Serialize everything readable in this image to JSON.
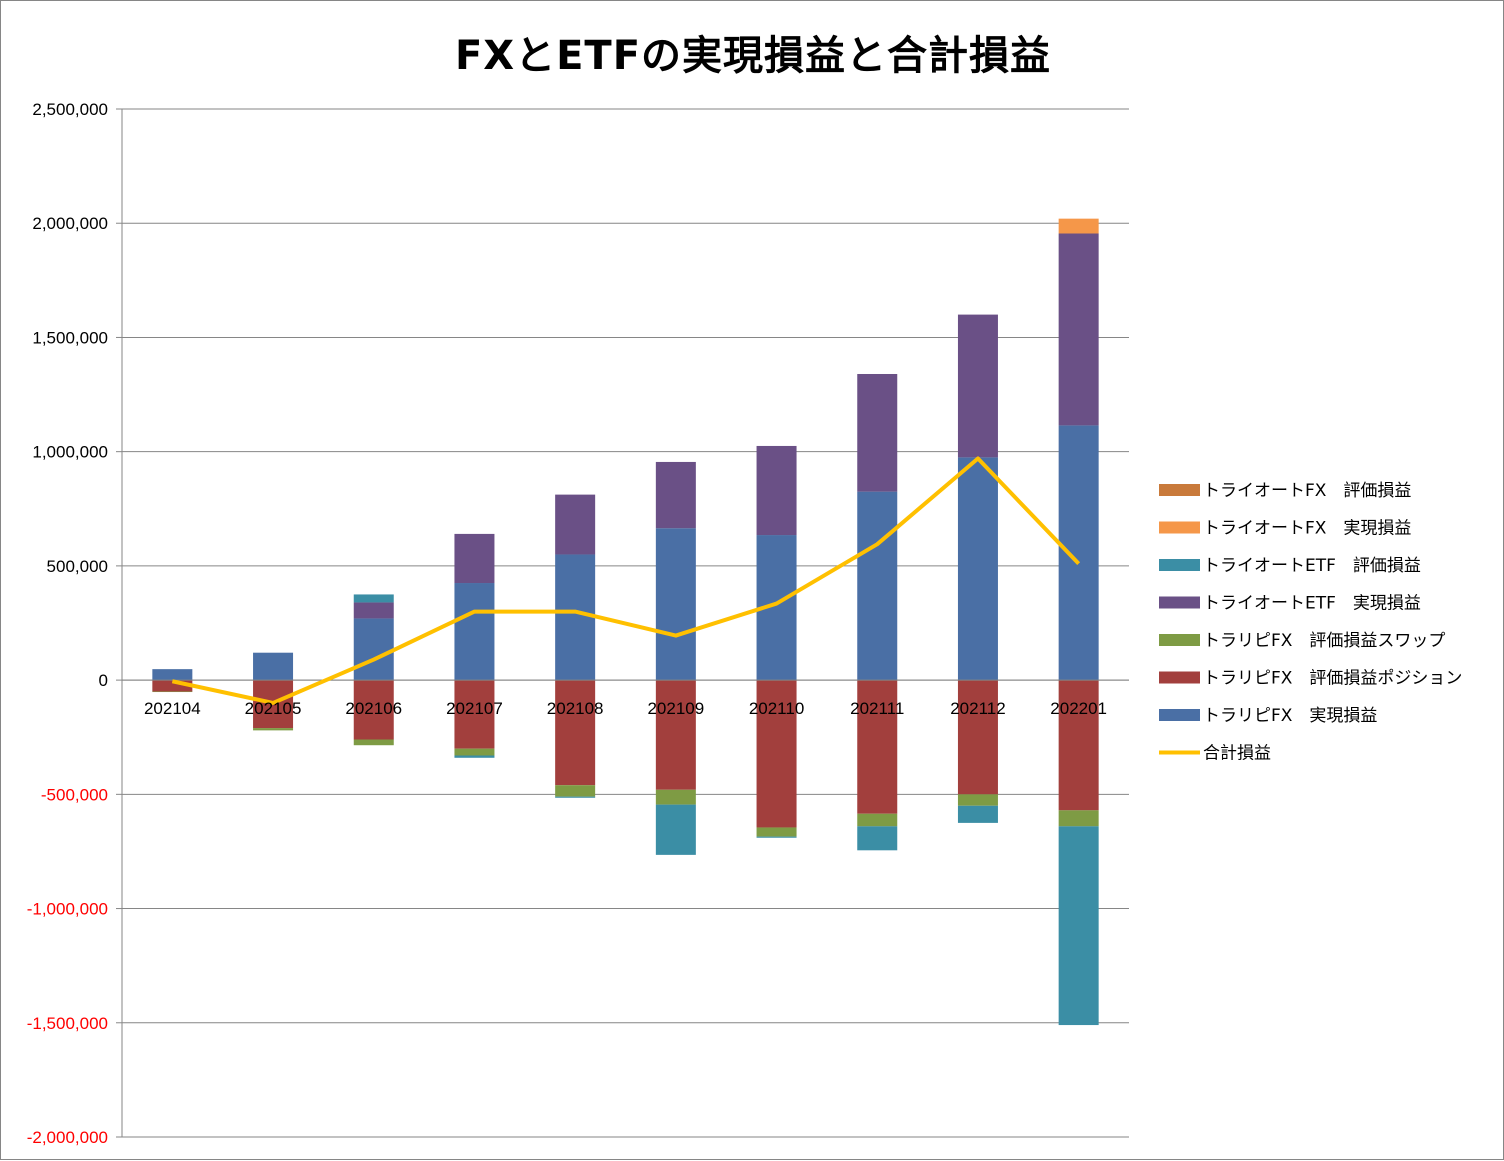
{
  "chart_data": {
    "type": "bar",
    "stacked": true,
    "title": "FXとETFの実現損益と合計損益",
    "categories": [
      "202104",
      "202105",
      "202106",
      "202107",
      "202108",
      "202109",
      "202110",
      "202111",
      "202112",
      "202201"
    ],
    "ylim": [
      -2000000,
      2500000
    ],
    "yticks": [
      2500000,
      2000000,
      1500000,
      1000000,
      500000,
      0,
      -500000,
      -1000000,
      -1500000,
      -2000000
    ],
    "ytick_labels": [
      "2,500,000",
      "2,000,000",
      "1,500,000",
      "1,000,000",
      "500,000",
      "0",
      "-500,000",
      "-1,000,000",
      "-1,500,000",
      "-2,000,000"
    ],
    "negative_tick_color": "#ff0000",
    "positive_tick_color": "#000000",
    "grid": true,
    "legend_position": "right",
    "series": [
      {
        "name": "トラリピFX　実現損益",
        "kind": "bar",
        "color": "#4a6fa5",
        "values": [
          48000,
          120000,
          270000,
          425000,
          550000,
          665000,
          635000,
          825000,
          975000,
          1115000
        ]
      },
      {
        "name": "トラリピFX　評価損益ポジション",
        "kind": "bar",
        "color": "#a23f3d",
        "values": [
          -50000,
          -210000,
          -260000,
          -300000,
          -460000,
          -480000,
          -645000,
          -585000,
          -500000,
          -570000
        ]
      },
      {
        "name": "トラリピFX　評価損益スワップ",
        "kind": "bar",
        "color": "#7e9b44",
        "values": [
          -2000,
          -10000,
          -25000,
          -30000,
          -50000,
          -65000,
          -40000,
          -55000,
          -50000,
          -70000
        ]
      },
      {
        "name": "トライオートETF　実現損益",
        "kind": "bar",
        "color": "#6a5086",
        "values": [
          0,
          0,
          70000,
          215000,
          262000,
          290000,
          390000,
          515000,
          625000,
          840000
        ]
      },
      {
        "name": "トライオートETF　評価損益",
        "kind": "bar",
        "color": "#3b8ea5",
        "values": [
          0,
          0,
          35000,
          -10000,
          -5000,
          -220000,
          -5000,
          -105000,
          -75000,
          -870000
        ]
      },
      {
        "name": "トライオートFX　実現損益",
        "kind": "bar",
        "color": "#f59749",
        "values": [
          0,
          0,
          0,
          0,
          0,
          0,
          0,
          0,
          0,
          65000
        ]
      },
      {
        "name": "トライオートFX　評価損益",
        "kind": "bar",
        "color": "#c97a3b",
        "values": [
          0,
          0,
          0,
          0,
          0,
          0,
          0,
          0,
          0,
          0
        ]
      },
      {
        "name": "合計損益",
        "kind": "line",
        "color": "#ffc000",
        "values": [
          -5000,
          -100000,
          90000,
          300000,
          300000,
          195000,
          335000,
          595000,
          970000,
          510000
        ]
      }
    ],
    "legend_order": [
      6,
      5,
      4,
      3,
      2,
      1,
      0,
      7
    ]
  }
}
